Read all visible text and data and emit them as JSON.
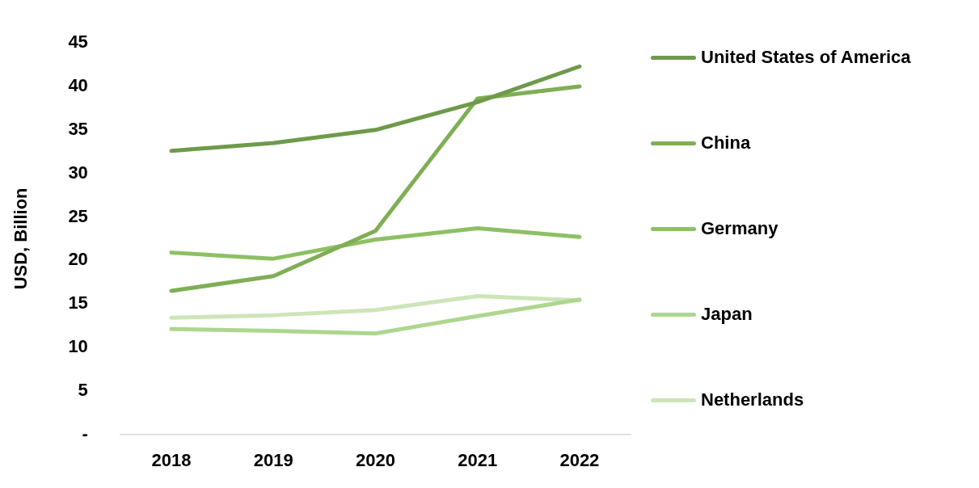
{
  "chart_data": {
    "type": "line",
    "ylabel": "USD, Billion",
    "categories": [
      "2018",
      "2019",
      "2020",
      "2021",
      "2022"
    ],
    "series": [
      {
        "name": "United States of America",
        "color": "#6e9a4a",
        "values": [
          32.6,
          33.5,
          35.0,
          38.2,
          42.3
        ]
      },
      {
        "name": "China",
        "color": "#7fae55",
        "values": [
          16.5,
          18.2,
          23.4,
          38.6,
          40.0
        ]
      },
      {
        "name": "Germany",
        "color": "#8dc063",
        "values": [
          20.9,
          20.2,
          22.4,
          23.7,
          22.7
        ]
      },
      {
        "name": "Japan",
        "color": "#add68f",
        "values": [
          12.1,
          11.9,
          11.6,
          13.6,
          15.5
        ]
      },
      {
        "name": "Netherlands",
        "color": "#cde5b8",
        "values": [
          13.4,
          13.7,
          14.3,
          15.9,
          15.4
        ]
      }
    ],
    "ylim": [
      0,
      45
    ],
    "yticks": [
      {
        "value": 0,
        "label": "-"
      },
      5,
      10,
      15,
      20,
      25,
      30,
      35,
      40,
      45
    ],
    "grid": false,
    "legend": "right",
    "marker": "none",
    "line_style": "solid"
  }
}
